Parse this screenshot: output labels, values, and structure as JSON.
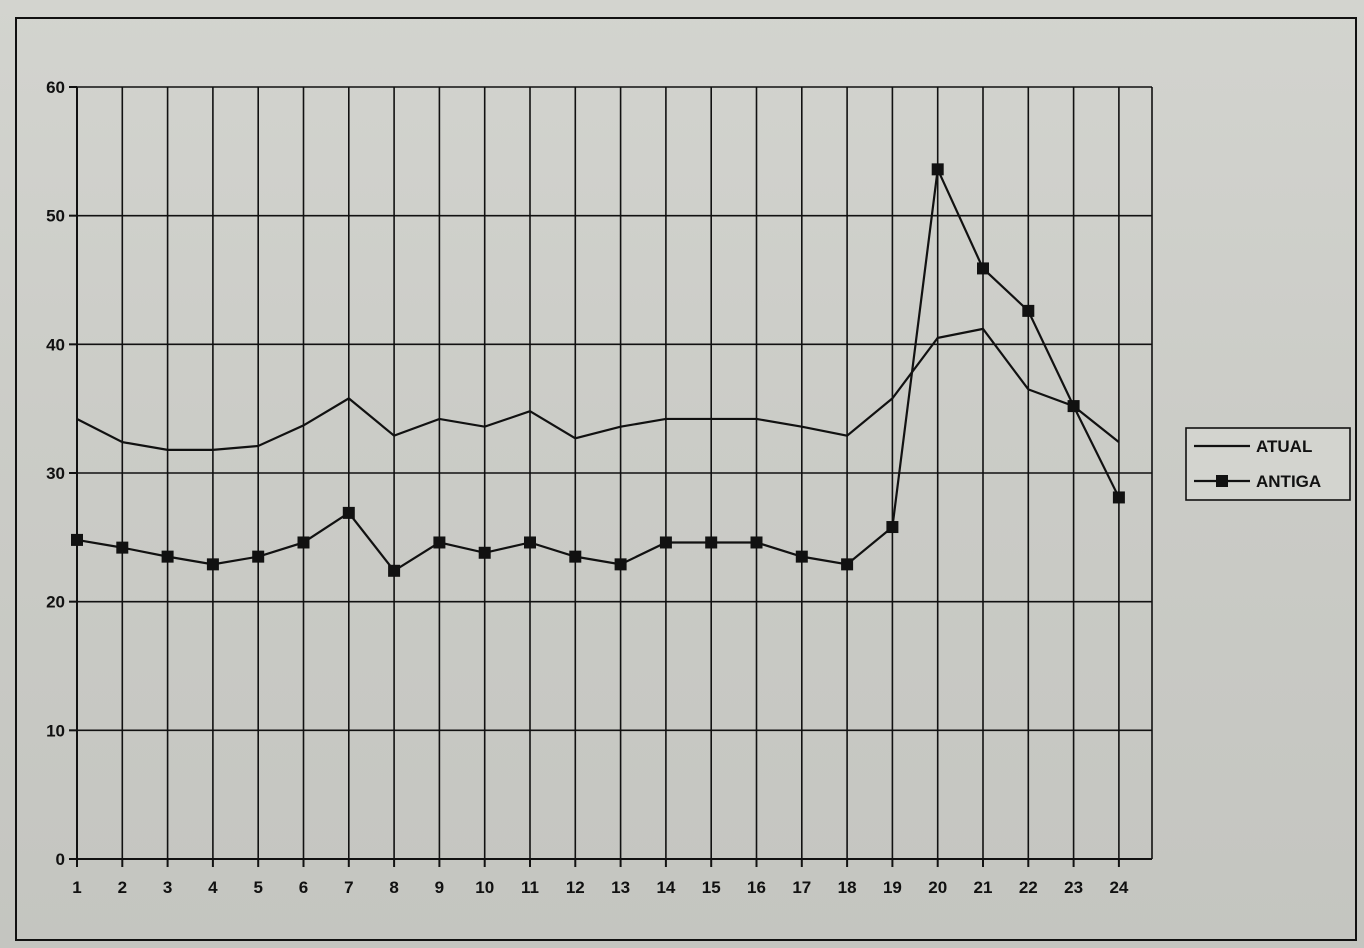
{
  "chart_data": {
    "type": "line",
    "title": "",
    "xlabel": "",
    "ylabel": "",
    "x": [
      1,
      2,
      3,
      4,
      5,
      6,
      7,
      8,
      9,
      10,
      11,
      12,
      13,
      14,
      15,
      16,
      17,
      18,
      19,
      20,
      21,
      22,
      23,
      24
    ],
    "ylim": [
      0,
      60
    ],
    "yticks": [
      0,
      10,
      20,
      30,
      40,
      50,
      60
    ],
    "grid": true,
    "legend_position": "right",
    "series": [
      {
        "name": "ATUAL",
        "marker": "none",
        "color": "#111111",
        "values": [
          34.2,
          32.4,
          31.8,
          31.8,
          32.1,
          33.7,
          35.8,
          32.9,
          34.2,
          33.6,
          34.8,
          32.7,
          33.6,
          34.2,
          34.2,
          34.2,
          33.6,
          32.9,
          35.8,
          40.5,
          41.2,
          36.5,
          35.2,
          32.4
        ]
      },
      {
        "name": "ANTIGA",
        "marker": "square",
        "color": "#111111",
        "values": [
          24.8,
          24.2,
          23.5,
          22.9,
          23.5,
          24.6,
          26.9,
          22.4,
          24.6,
          23.8,
          24.6,
          23.5,
          22.9,
          24.6,
          24.6,
          24.6,
          23.5,
          22.9,
          25.8,
          53.6,
          45.9,
          42.6,
          35.2,
          28.1
        ]
      }
    ]
  }
}
